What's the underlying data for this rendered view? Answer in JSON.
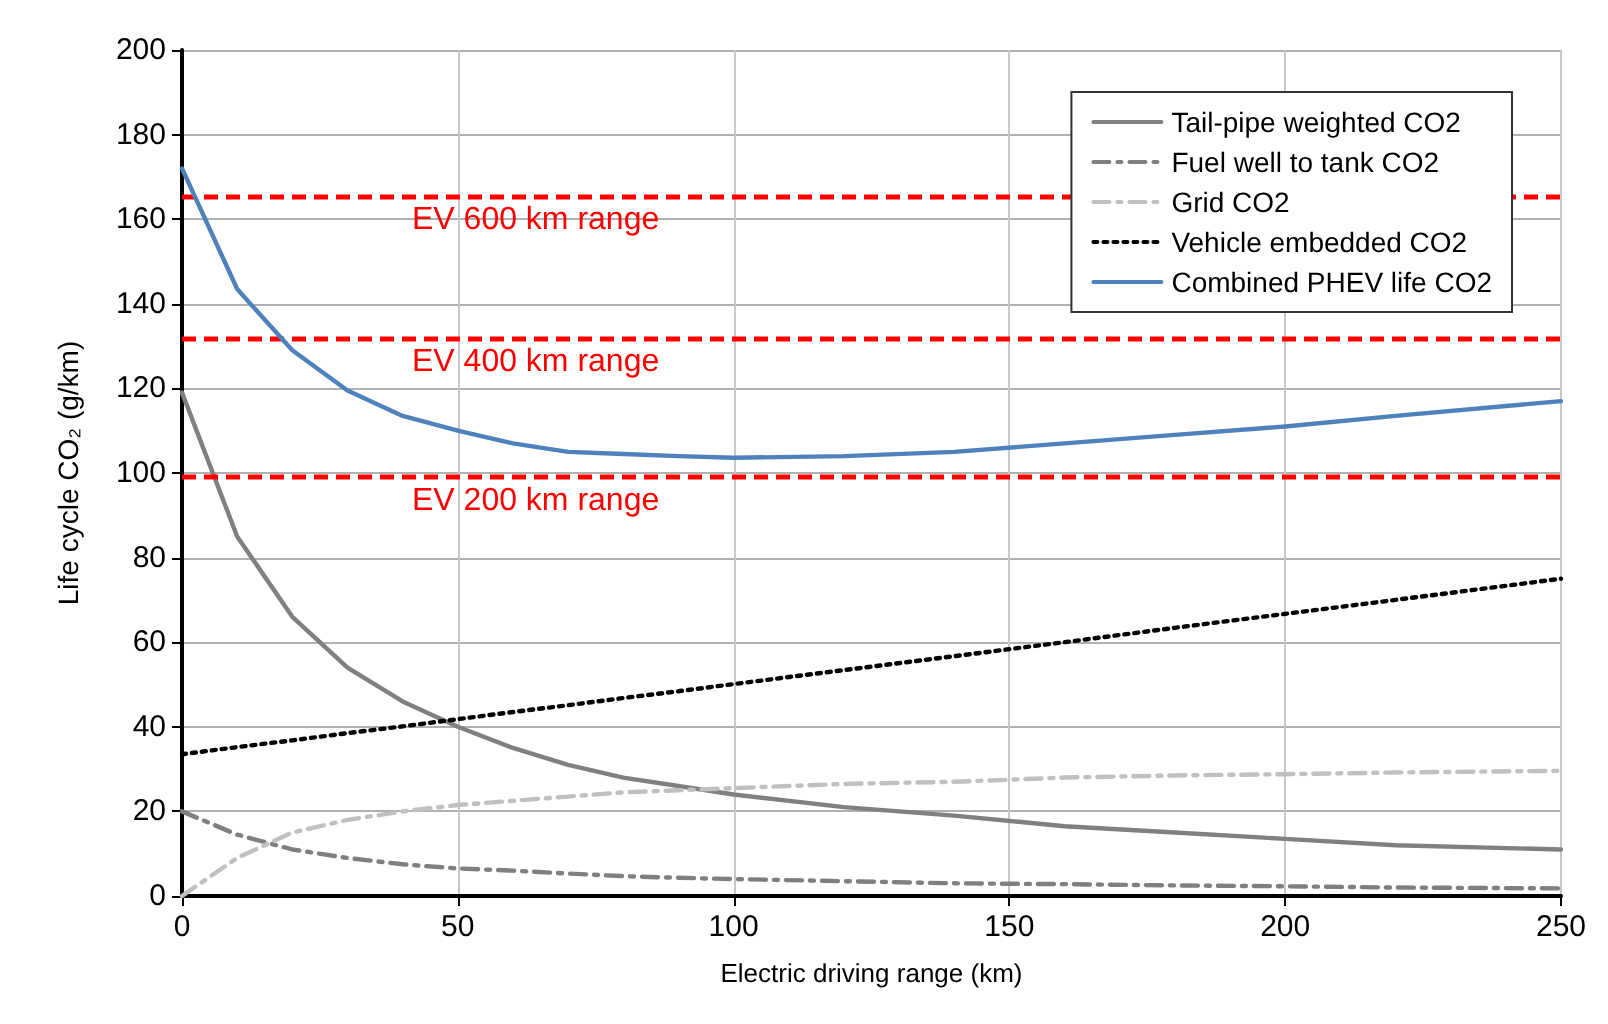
{
  "chart_data": {
    "type": "line",
    "xlabel": "Electric driving range (km)",
    "ylabel": "Life cycle CO₂ (g/km)",
    "x": [
      0,
      10,
      20,
      30,
      40,
      50,
      60,
      70,
      80,
      90,
      100,
      120,
      140,
      160,
      180,
      200,
      220,
      250
    ],
    "series": [
      {
        "name": "Tail-pipe weighted CO2",
        "color": "#808080",
        "line_style": "solid",
        "values": [
          119,
          85,
          66,
          54,
          46,
          40,
          35,
          31,
          28,
          26,
          24,
          21,
          19,
          16.5,
          15,
          13.5,
          12,
          11
        ]
      },
      {
        "name": "Fuel well to tank CO2",
        "color": "#7f7f7f",
        "line_style": "dashed",
        "values": [
          20,
          14.5,
          11,
          9,
          7.5,
          6.5,
          6,
          5.3,
          4.7,
          4.3,
          4,
          3.5,
          3,
          2.8,
          2.5,
          2.3,
          2,
          1.8
        ]
      },
      {
        "name": "Grid CO2",
        "color": "#c0c0c0",
        "line_style": "dashed",
        "values": [
          0,
          9,
          15,
          18,
          20,
          21.5,
          22.5,
          23.5,
          24.5,
          25,
          25.5,
          26.5,
          27,
          28,
          28.5,
          28.8,
          29.2,
          29.6
        ]
      },
      {
        "name": "Vehicle embedded CO2",
        "color": "#000000",
        "line_style": "dotted",
        "values": [
          33.5,
          35.2,
          36.8,
          38.5,
          40.1,
          41.8,
          43.5,
          45.1,
          46.8,
          48.4,
          50.1,
          53.4,
          56.7,
          60,
          63.4,
          66.7,
          70,
          75
        ]
      },
      {
        "name": "Combined PHEV life CO2",
        "color": "#4f81bd",
        "line_style": "solid",
        "values": [
          172,
          143.5,
          129,
          119.5,
          113.5,
          110,
          107,
          105,
          104.5,
          104,
          103.6,
          104,
          105,
          107,
          109,
          111,
          113.5,
          117
        ]
      }
    ],
    "ref_lines": [
      {
        "axis": "y",
        "value": 165.5,
        "label": "EV 600 km range",
        "color": "#ff0000",
        "line_style": "dashed"
      },
      {
        "axis": "y",
        "value": 132,
        "label": "EV 400 km range",
        "color": "#ff0000",
        "line_style": "dashed"
      },
      {
        "axis": "y",
        "value": 99,
        "label": "EV 200 km range",
        "color": "#ff0000",
        "line_style": "dashed"
      }
    ],
    "xlim": [
      0,
      250
    ],
    "xticks": [
      0,
      50,
      100,
      150,
      200,
      250
    ],
    "ylim": [
      0,
      200
    ],
    "yticks": [
      0,
      20,
      40,
      60,
      80,
      100,
      120,
      140,
      160,
      180,
      200
    ],
    "grid": true,
    "legend": "top right",
    "marker": "none"
  }
}
